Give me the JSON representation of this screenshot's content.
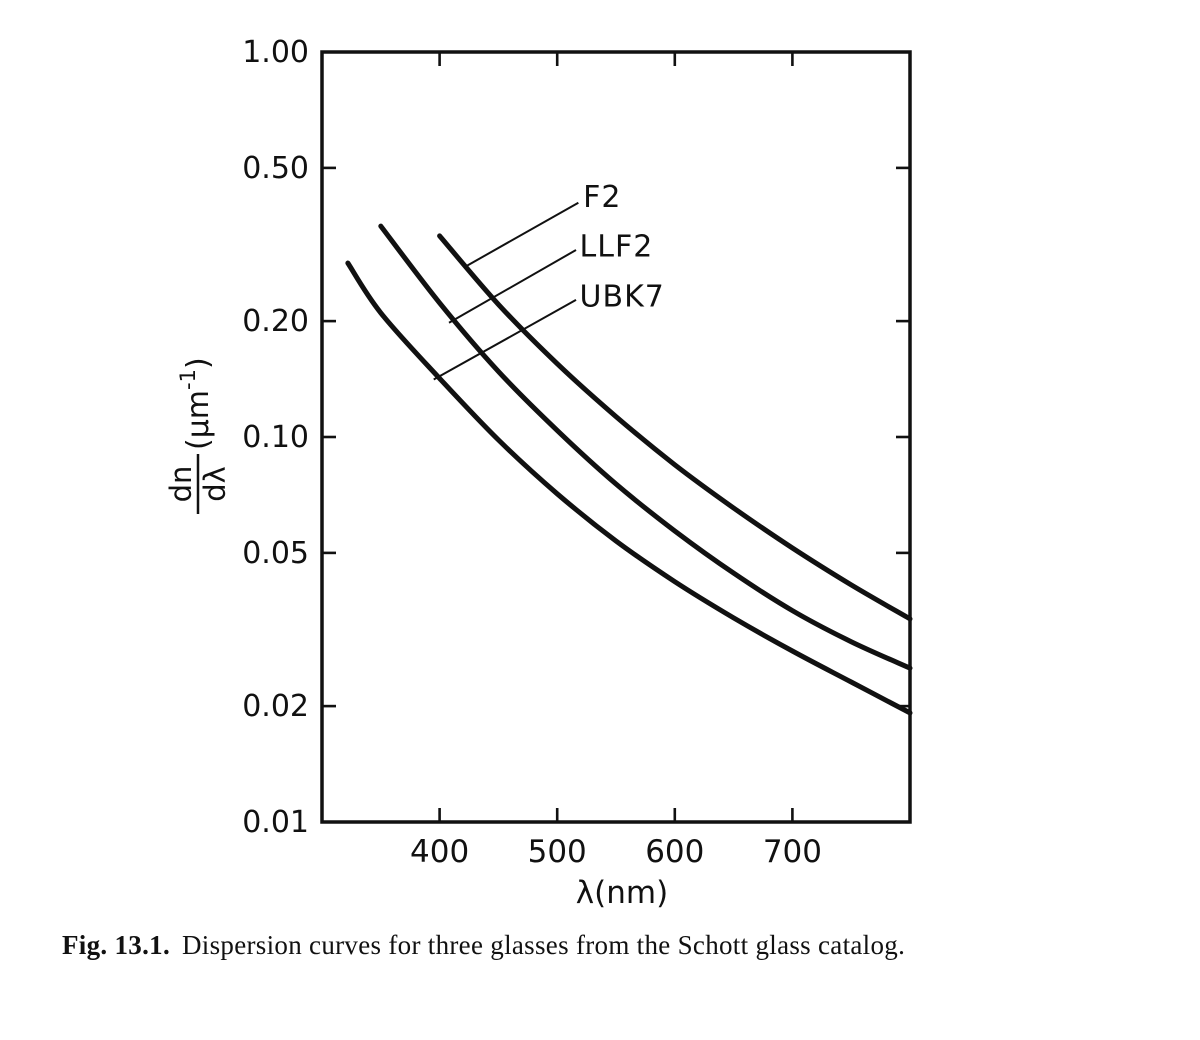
{
  "figure": {
    "caption_prefix": "Fig. 13.1.",
    "caption_text": "Dispersion curves for three glasses from the Schott glass catalog."
  },
  "chart_data": {
    "type": "line",
    "title": "",
    "xlabel": "λ(nm)",
    "ylabel": {
      "numerator": "dn",
      "denominator": "dλ",
      "unit_pre": "(μm",
      "unit_sup": "-1",
      "unit_post": ")"
    },
    "x_axis": {
      "min": 300,
      "max": 800,
      "scale": "linear",
      "ticks": [
        400,
        500,
        600,
        700
      ],
      "tick_labels": [
        "400",
        "500",
        "600",
        "700"
      ]
    },
    "y_axis": {
      "min": 0.01,
      "max": 1.0,
      "scale": "log",
      "ticks": [
        1.0,
        0.5,
        0.2,
        0.1,
        0.05,
        0.02,
        0.01
      ],
      "tick_labels": [
        "1.00",
        "0.50",
        "0.20",
        "0.10",
        "0.05",
        "0.02",
        "0.01"
      ],
      "inner_ticks": [
        0.5,
        0.2,
        0.1,
        0.05,
        0.02
      ]
    },
    "grid": false,
    "legend": "annotated-labels",
    "ink_color": "#111111",
    "paper_color": "#ffffff",
    "series": [
      {
        "name": "F2",
        "points": [
          [
            400,
            0.333
          ],
          [
            450,
            0.221
          ],
          [
            500,
            0.155
          ],
          [
            550,
            0.113
          ],
          [
            600,
            0.0847
          ],
          [
            650,
            0.0654
          ],
          [
            700,
            0.0515
          ],
          [
            750,
            0.0413
          ],
          [
            800,
            0.0337
          ]
        ]
      },
      {
        "name": "LLF2",
        "points": [
          [
            350,
            0.353
          ],
          [
            400,
            0.223
          ],
          [
            450,
            0.148
          ],
          [
            500,
            0.104
          ],
          [
            550,
            0.0755
          ],
          [
            600,
            0.057
          ],
          [
            650,
            0.0443
          ],
          [
            700,
            0.0354
          ],
          [
            750,
            0.0294
          ],
          [
            800,
            0.0251
          ]
        ]
      },
      {
        "name": "UBK7",
        "points": [
          [
            322,
            0.283
          ],
          [
            350,
            0.21
          ],
          [
            400,
            0.142
          ],
          [
            450,
            0.0983
          ],
          [
            500,
            0.0712
          ],
          [
            550,
            0.0537
          ],
          [
            600,
            0.0421
          ],
          [
            650,
            0.0339
          ],
          [
            700,
            0.0278
          ],
          [
            750,
            0.0231
          ],
          [
            800,
            0.0192
          ]
        ]
      }
    ],
    "annotations": [
      {
        "text": "F2",
        "text_at": [
          522,
          0.396
        ],
        "line": [
          [
            518,
            0.406
          ],
          [
            421,
            0.276
          ]
        ]
      },
      {
        "text": "LLF2",
        "text_at": [
          519,
          0.294
        ],
        "line": [
          [
            516,
            0.306
          ],
          [
            408,
            0.198
          ]
        ]
      },
      {
        "text": "UBK7",
        "text_at": [
          519,
          0.218
        ],
        "line": [
          [
            516,
            0.227
          ],
          [
            395,
            0.141
          ]
        ]
      }
    ]
  }
}
